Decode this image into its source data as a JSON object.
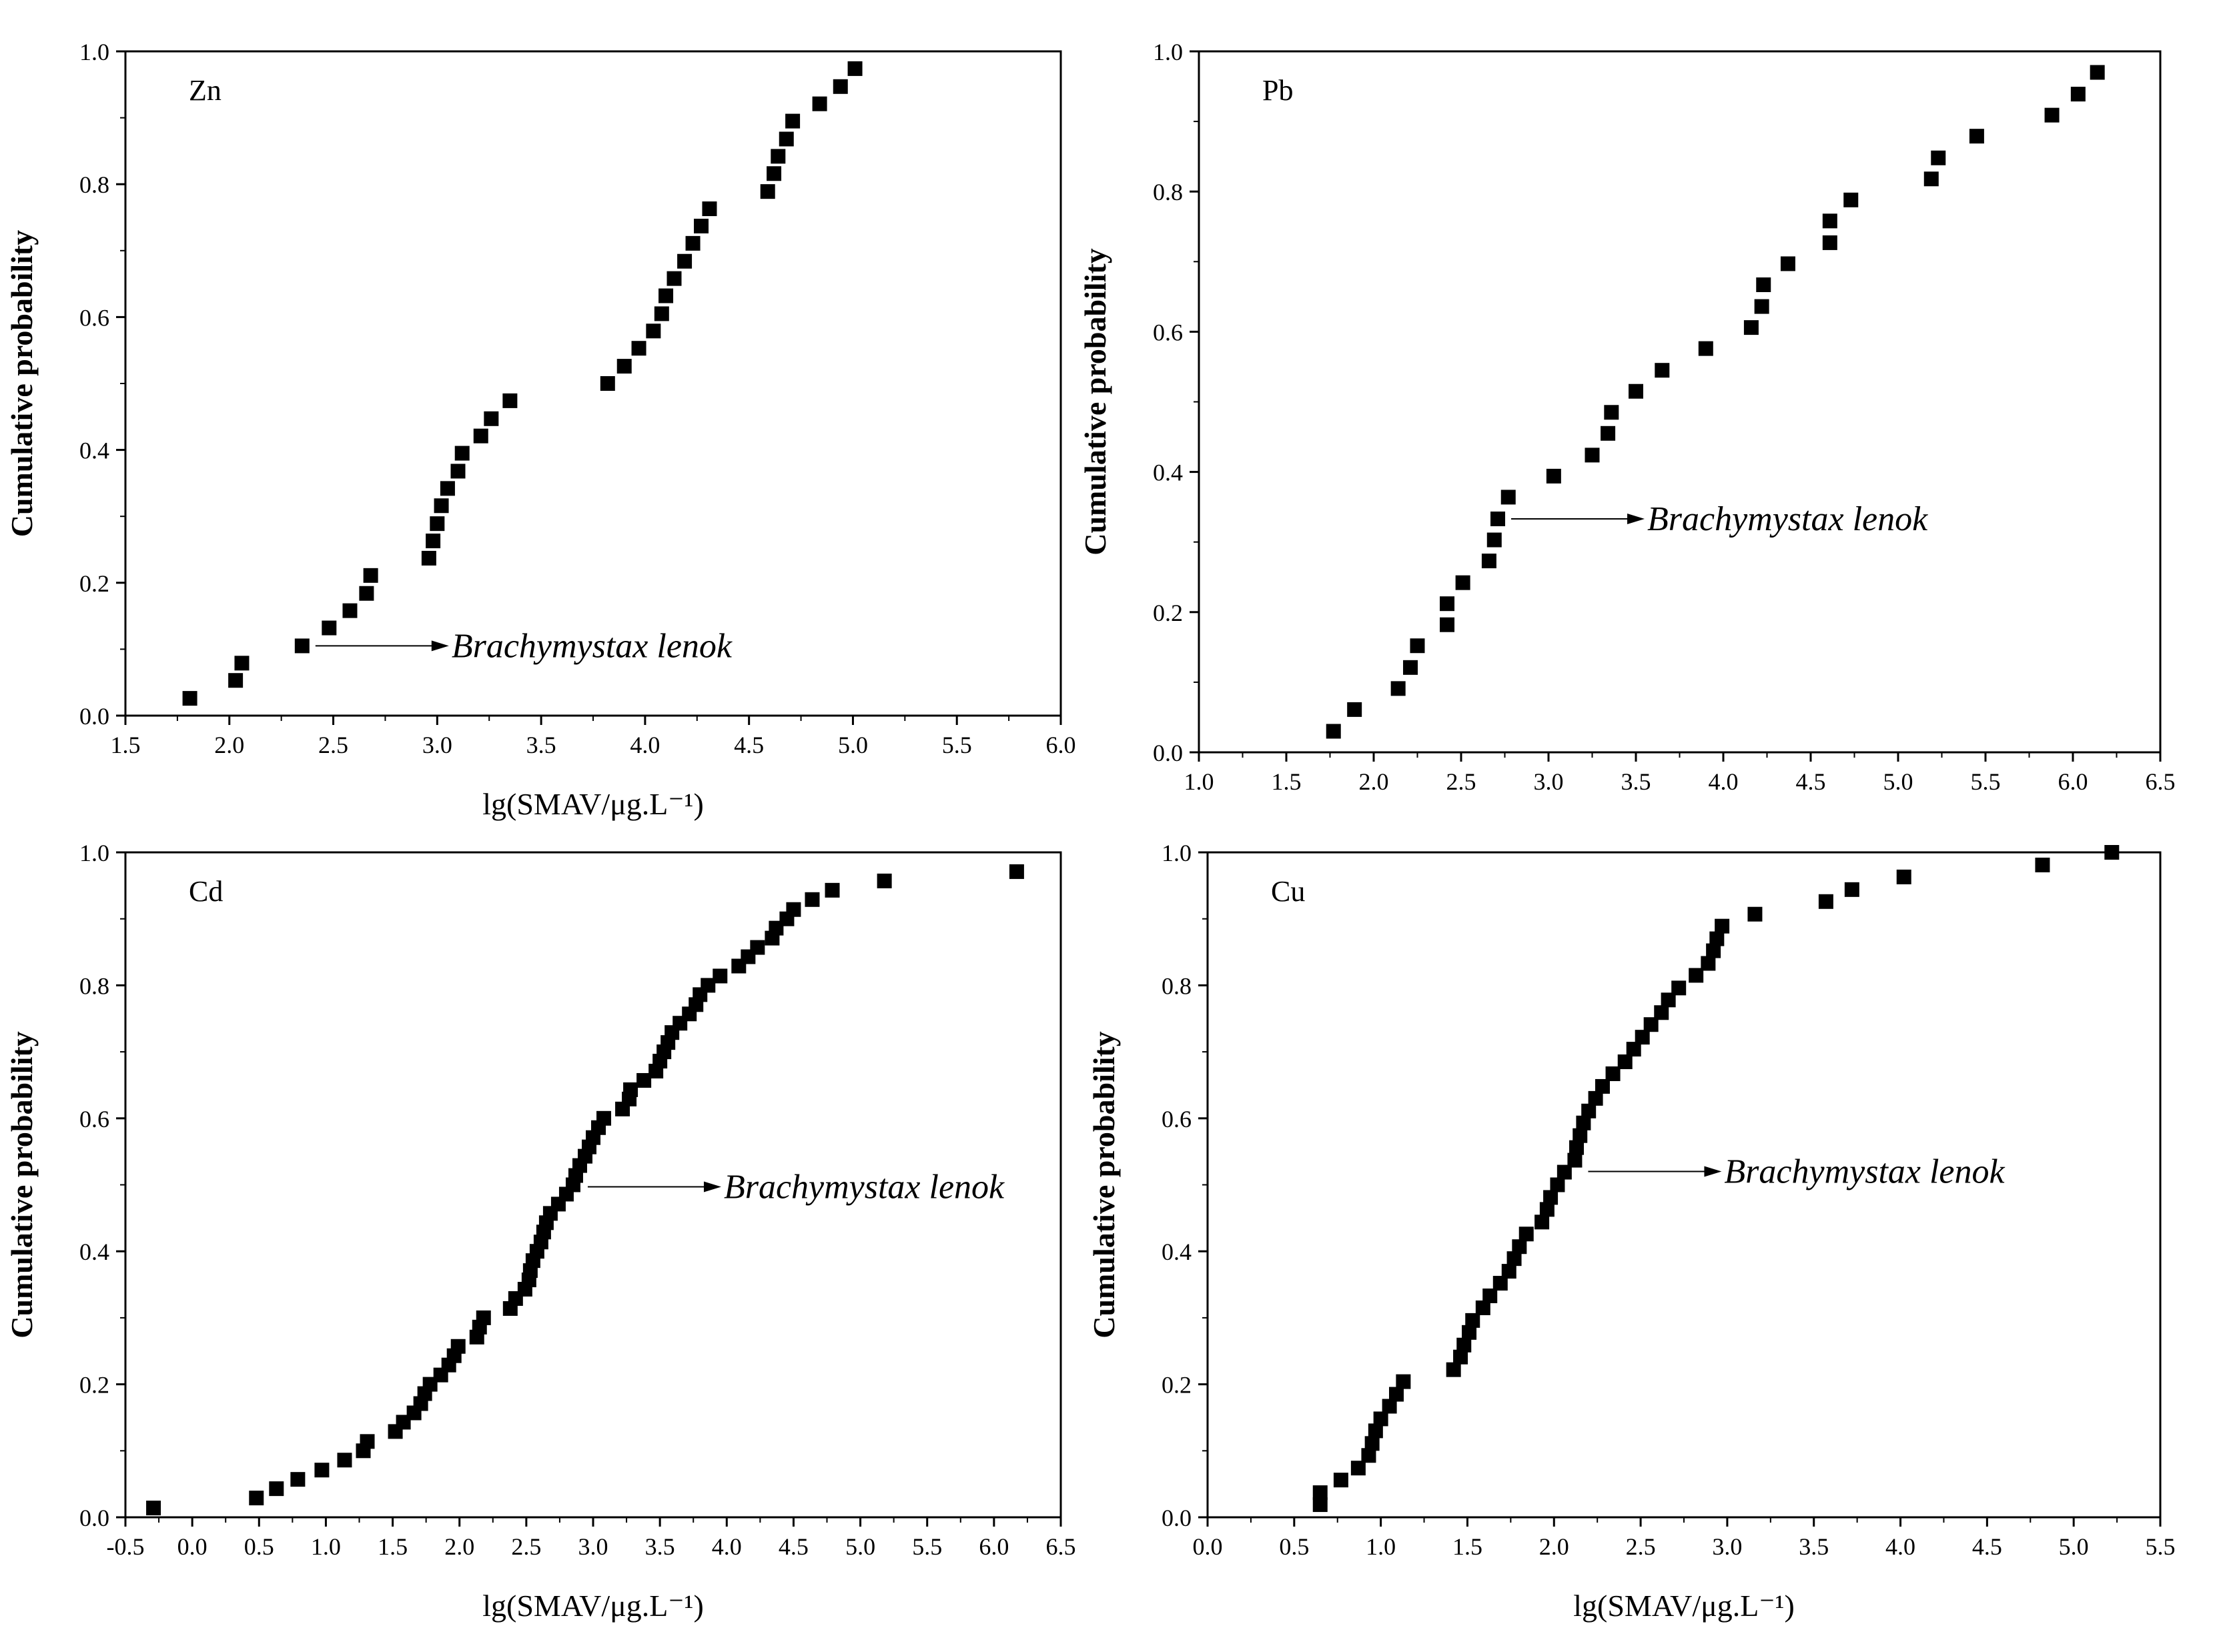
{
  "chart_data": [
    {
      "type": "scatter",
      "panel": "Zn",
      "xlabel": "lg(SMAV/μg.L⁻¹)",
      "ylabel": "Cumulative probability",
      "xlim": [
        1.5,
        6.0
      ],
      "ylim": [
        0.0,
        1.0
      ],
      "xticks": [
        "1.5",
        "2.0",
        "2.5",
        "3.0",
        "3.5",
        "4.0",
        "4.5",
        "5.0",
        "5.5",
        "6.0"
      ],
      "yticks": [
        "0.0",
        "0.2",
        "0.4",
        "0.6",
        "0.8",
        "1.0"
      ],
      "annotation": {
        "text": "Brachymystax lenok",
        "x": 2.35,
        "y": 0.105
      },
      "series": [
        {
          "name": "Zn",
          "x": [
            1.81,
            2.03,
            2.06,
            2.35,
            2.48,
            2.58,
            2.66,
            2.68,
            2.96,
            2.98,
            3.0,
            3.02,
            3.05,
            3.1,
            3.12,
            3.21,
            3.26,
            3.35,
            3.82,
            3.9,
            3.97,
            4.04,
            4.08,
            4.1,
            4.14,
            4.19,
            4.23,
            4.27,
            4.31,
            4.59,
            4.62,
            4.64,
            4.68,
            4.71,
            4.84,
            4.94,
            5.01
          ],
          "y": [
            0.026,
            0.053,
            0.079,
            0.105,
            0.132,
            0.158,
            0.184,
            0.211,
            0.237,
            0.263,
            0.289,
            0.316,
            0.342,
            0.368,
            0.395,
            0.421,
            0.447,
            0.474,
            0.5,
            0.526,
            0.553,
            0.579,
            0.605,
            0.632,
            0.658,
            0.684,
            0.711,
            0.737,
            0.763,
            0.789,
            0.816,
            0.842,
            0.868,
            0.895,
            0.921,
            0.947,
            0.974
          ]
        }
      ]
    },
    {
      "type": "scatter",
      "panel": "Pb",
      "xlabel": "",
      "ylabel": "Cumulative probability",
      "xlim": [
        1.0,
        6.5
      ],
      "ylim": [
        0.0,
        1.0
      ],
      "xticks": [
        "1.0",
        "1.5",
        "2.0",
        "2.5",
        "3.0",
        "3.5",
        "4.0",
        "4.5",
        "5.0",
        "5.5",
        "6.0",
        "6.5"
      ],
      "yticks": [
        "0.0",
        "0.2",
        "0.4",
        "0.6",
        "0.8",
        "1.0"
      ],
      "annotation": {
        "text": "Brachymystax lenok",
        "x": 2.71,
        "y": 0.333
      },
      "series": [
        {
          "name": "Pb",
          "x": [
            1.77,
            1.89,
            2.14,
            2.21,
            2.25,
            2.42,
            2.42,
            2.51,
            2.66,
            2.69,
            2.71,
            2.77,
            3.03,
            3.25,
            3.34,
            3.36,
            3.5,
            3.65,
            3.9,
            4.16,
            4.22,
            4.23,
            4.37,
            4.61,
            4.61,
            4.73,
            5.19,
            5.23,
            5.45,
            5.88,
            6.03,
            6.14
          ],
          "y": [
            0.03,
            0.061,
            0.091,
            0.121,
            0.152,
            0.182,
            0.212,
            0.242,
            0.273,
            0.303,
            0.333,
            0.364,
            0.394,
            0.424,
            0.455,
            0.485,
            0.515,
            0.545,
            0.576,
            0.606,
            0.636,
            0.667,
            0.697,
            0.727,
            0.758,
            0.788,
            0.818,
            0.848,
            0.879,
            0.909,
            0.939,
            0.97
          ]
        }
      ]
    },
    {
      "type": "scatter",
      "panel": "Cd",
      "xlabel": "lg(SMAV/μg.L⁻¹)",
      "ylabel": "Cumulative probability",
      "xlim": [
        -0.5,
        6.5
      ],
      "ylim": [
        0.0,
        1.0
      ],
      "xticks": [
        "-0.5",
        "0.0",
        "0.5",
        "1.0",
        "1.5",
        "2.0",
        "2.5",
        "3.0",
        "3.5",
        "4.0",
        "4.5",
        "5.0",
        "5.5",
        "6.0",
        "6.5"
      ],
      "yticks": [
        "0.0",
        "0.2",
        "0.4",
        "0.6",
        "0.8",
        "1.0"
      ],
      "annotation": {
        "text": "Brachymystax lenok",
        "x": 2.86,
        "y": 0.497
      },
      "series": [
        {
          "name": "Cd",
          "x": [
            -0.29,
            0.48,
            0.63,
            0.79,
            0.97,
            1.14,
            1.28,
            1.31,
            1.52,
            1.58,
            1.66,
            1.71,
            1.74,
            1.78,
            1.86,
            1.92,
            1.96,
            1.99,
            2.13,
            2.15,
            2.18,
            2.38,
            2.42,
            2.49,
            2.52,
            2.53,
            2.55,
            2.58,
            2.61,
            2.63,
            2.65,
            2.68,
            2.74,
            2.8,
            2.85,
            2.87,
            2.9,
            2.94,
            2.97,
            3.0,
            3.04,
            3.08,
            3.22,
            3.27,
            3.28,
            3.38,
            3.47,
            3.5,
            3.53,
            3.56,
            3.59,
            3.65,
            3.72,
            3.77,
            3.8,
            3.86,
            3.95,
            4.09,
            4.16,
            4.23,
            4.34,
            4.37,
            4.45,
            4.5,
            4.64,
            4.79,
            5.18,
            6.17
          ],
          "y": [
            0.014,
            0.029,
            0.043,
            0.057,
            0.071,
            0.086,
            0.1,
            0.114,
            0.129,
            0.143,
            0.157,
            0.171,
            0.186,
            0.2,
            0.214,
            0.229,
            0.243,
            0.257,
            0.271,
            0.286,
            0.3,
            0.314,
            0.329,
            0.343,
            0.357,
            0.371,
            0.386,
            0.4,
            0.414,
            0.429,
            0.443,
            0.457,
            0.471,
            0.486,
            0.5,
            0.514,
            0.529,
            0.543,
            0.557,
            0.571,
            0.586,
            0.6,
            0.614,
            0.629,
            0.643,
            0.657,
            0.671,
            0.686,
            0.7,
            0.714,
            0.729,
            0.743,
            0.757,
            0.771,
            0.786,
            0.8,
            0.814,
            0.829,
            0.843,
            0.857,
            0.871,
            0.886,
            0.9,
            0.914,
            0.929,
            0.943,
            0.957,
            0.971
          ]
        }
      ]
    },
    {
      "type": "scatter",
      "panel": "Cu",
      "xlabel": "lg(SMAV/μg.L⁻¹)",
      "ylabel": "Cumulative probability",
      "xlim": [
        0.0,
        5.5
      ],
      "ylim": [
        0.0,
        1.0
      ],
      "xticks": [
        "0.0",
        "0.5",
        "1.0",
        "1.5",
        "2.0",
        "2.5",
        "3.0",
        "3.5",
        "4.0",
        "4.5",
        "5.0",
        "5.5"
      ],
      "yticks": [
        "0.0",
        "0.2",
        "0.4",
        "0.6",
        "0.8",
        "1.0"
      ],
      "annotation": {
        "text": "Brachymystax lenok",
        "x": 2.12,
        "y": 0.52
      },
      "series": [
        {
          "name": "Cu",
          "x": [
            0.65,
            0.65,
            0.77,
            0.87,
            0.93,
            0.95,
            0.97,
            1.0,
            1.05,
            1.09,
            1.13,
            1.42,
            1.46,
            1.48,
            1.51,
            1.53,
            1.59,
            1.63,
            1.69,
            1.74,
            1.77,
            1.8,
            1.84,
            1.93,
            1.96,
            1.98,
            2.02,
            2.06,
            2.12,
            2.13,
            2.15,
            2.17,
            2.2,
            2.24,
            2.28,
            2.34,
            2.41,
            2.46,
            2.51,
            2.56,
            2.62,
            2.66,
            2.72,
            2.82,
            2.89,
            2.92,
            2.94,
            2.97,
            3.16,
            3.57,
            3.72,
            4.02,
            4.82,
            5.22
          ],
          "y": [
            0.019,
            0.037,
            0.056,
            0.074,
            0.093,
            0.111,
            0.13,
            0.148,
            0.167,
            0.185,
            0.204,
            0.222,
            0.241,
            0.259,
            0.278,
            0.296,
            0.315,
            0.333,
            0.352,
            0.37,
            0.389,
            0.407,
            0.426,
            0.444,
            0.463,
            0.481,
            0.5,
            0.519,
            0.537,
            0.556,
            0.574,
            0.593,
            0.611,
            0.63,
            0.648,
            0.667,
            0.685,
            0.704,
            0.722,
            0.741,
            0.759,
            0.778,
            0.796,
            0.815,
            0.833,
            0.852,
            0.87,
            0.889,
            0.907,
            0.926,
            0.944,
            0.963,
            0.981,
            1.0
          ]
        }
      ]
    }
  ]
}
